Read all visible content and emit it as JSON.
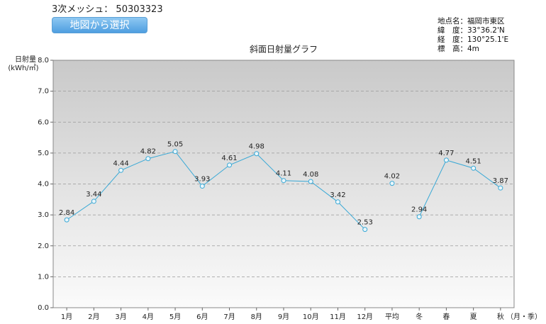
{
  "header": {
    "mesh_label": "3次メッシュ：",
    "mesh_code": "50303323",
    "button": "地図から選択"
  },
  "info": [
    "地点名：福岡市東区",
    "緯　度：33°36.2'N",
    "経　度：130°25.1'E",
    "標　高：4m"
  ],
  "chart_data": {
    "type": "line",
    "title": "斜面日射量グラフ",
    "y_label": [
      "日射量",
      "(kWh/㎡)"
    ],
    "x_label": "（月・季）",
    "categories": [
      "1月",
      "2月",
      "3月",
      "4月",
      "5月",
      "6月",
      "7月",
      "8月",
      "9月",
      "10月",
      "11月",
      "12月",
      "平均",
      "冬",
      "春",
      "夏",
      "秋"
    ],
    "series": [
      {
        "color": "#3aa9d6",
        "values": [
          2.84,
          3.44,
          4.44,
          4.82,
          5.05,
          3.93,
          4.61,
          4.98,
          4.11,
          4.08,
          3.42,
          2.53,
          null,
          null,
          null,
          null,
          null
        ]
      },
      {
        "color": "#3aa9d6",
        "values": [
          null,
          null,
          null,
          null,
          null,
          null,
          null,
          null,
          null,
          null,
          null,
          null,
          4.02,
          null,
          null,
          null,
          null
        ]
      },
      {
        "color": "#3aa9d6",
        "values": [
          null,
          null,
          null,
          null,
          null,
          null,
          null,
          null,
          null,
          null,
          null,
          null,
          null,
          2.94,
          4.77,
          4.51,
          3.87
        ]
      }
    ],
    "ylim": [
      0,
      8
    ],
    "yticks": [
      {
        "value": 0,
        "label": "0.0"
      },
      {
        "value": 1,
        "label": "1.0"
      },
      {
        "value": 2,
        "label": "2.0"
      },
      {
        "value": 3,
        "label": "3.0"
      },
      {
        "value": 4,
        "label": "4.0"
      },
      {
        "value": 5,
        "label": "5.0"
      },
      {
        "value": 6,
        "label": "6.0"
      },
      {
        "value": 7,
        "label": "7.0"
      },
      {
        "value": 8,
        "label": "8.0"
      }
    ],
    "grid": true
  }
}
